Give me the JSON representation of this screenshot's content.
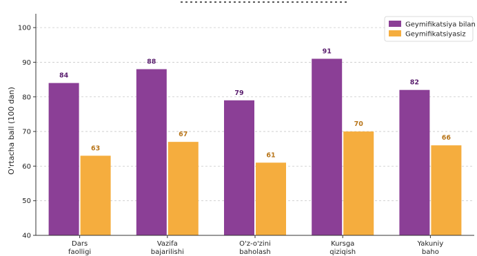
{
  "chart_data": {
    "type": "bar",
    "categories": [
      [
        "Dars",
        "faolligi"
      ],
      [
        "Vazifa",
        "bajarilishi"
      ],
      [
        "O'z-o'zini",
        "baholash"
      ],
      [
        "Kursga",
        "qiziqish"
      ],
      [
        "Yakuniy",
        "baho"
      ]
    ],
    "series": [
      {
        "name": "Geymifikatsiya bilan",
        "color": "#8B3F96",
        "label_color": "#5A1E6E",
        "values": [
          84,
          88,
          79,
          91,
          82
        ]
      },
      {
        "name": "Geymifikatsiyasiz",
        "color": "#F5AD3E",
        "label_color": "#B8761B",
        "values": [
          63,
          67,
          61,
          70,
          66
        ]
      }
    ],
    "ylabel": "O'rtacha ball (100 dan)",
    "ylim": [
      40,
      104
    ],
    "yticks": [
      40,
      50,
      60,
      70,
      80,
      90,
      100
    ],
    "grid": true,
    "legend_position": "top-right"
  }
}
